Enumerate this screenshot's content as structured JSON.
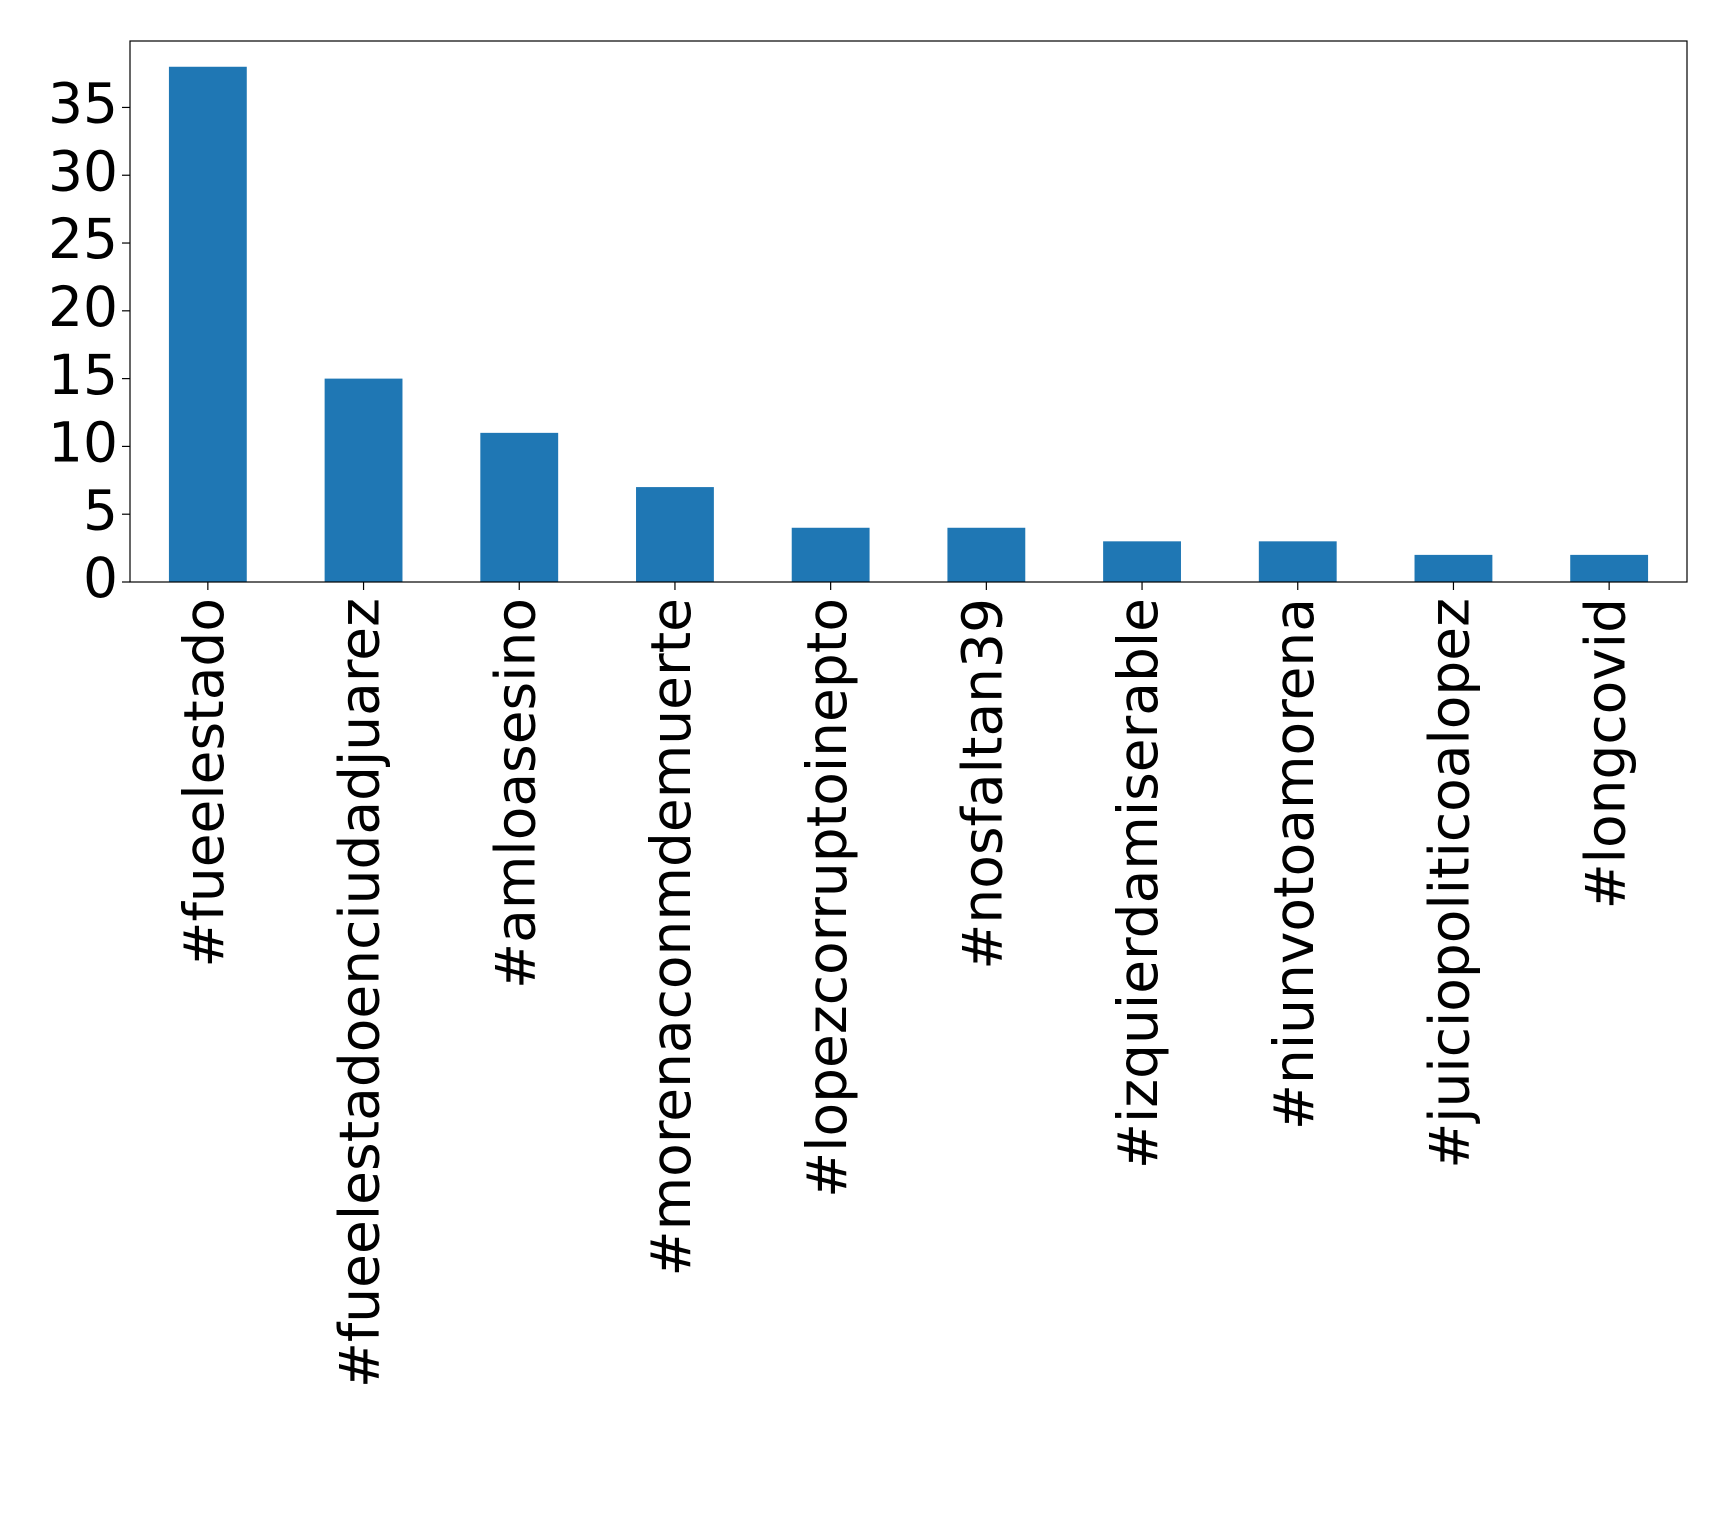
{
  "chart_data": {
    "type": "bar",
    "categories": [
      "#fueelestado",
      "#fueelestadoenciudadjuarez",
      "#amloasesino",
      "#morenaconmdemuerte",
      "#lopezcorruptoinepto",
      "#nosfaltan39",
      "#izquierdamiserable",
      "#niunvotoamorena",
      "#juiciopoliticoalopez",
      "#longcovid"
    ],
    "values": [
      38,
      15,
      11,
      7,
      4,
      4,
      3,
      3,
      2,
      2
    ],
    "color": "#1f77b4",
    "ylim": [
      0,
      39.9
    ],
    "yticks": [
      0,
      5,
      10,
      15,
      20,
      25,
      30,
      35
    ],
    "grid": false
  }
}
